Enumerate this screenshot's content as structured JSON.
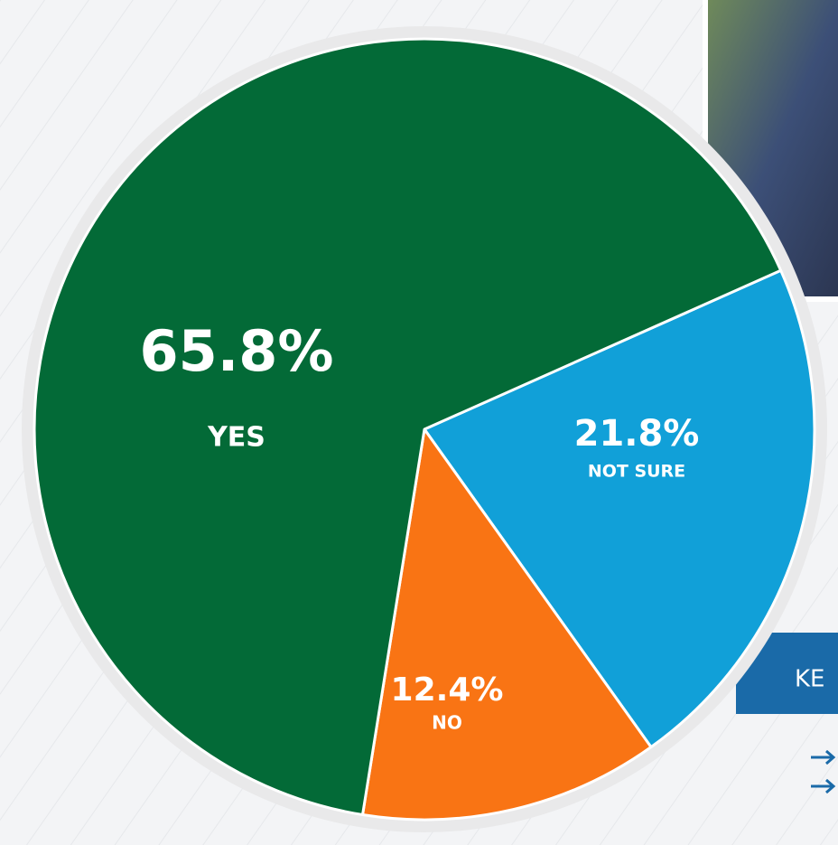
{
  "chart_data": {
    "type": "pie",
    "categories": [
      "YES",
      "NOT SURE",
      "NO"
    ],
    "values": [
      65.8,
      21.8,
      12.4
    ],
    "value_labels": [
      "65.8%",
      "21.8%",
      "12.4%"
    ],
    "colors": [
      "#036a37",
      "#11a0d8",
      "#f97414"
    ]
  },
  "key_box": {
    "label": "KE"
  }
}
